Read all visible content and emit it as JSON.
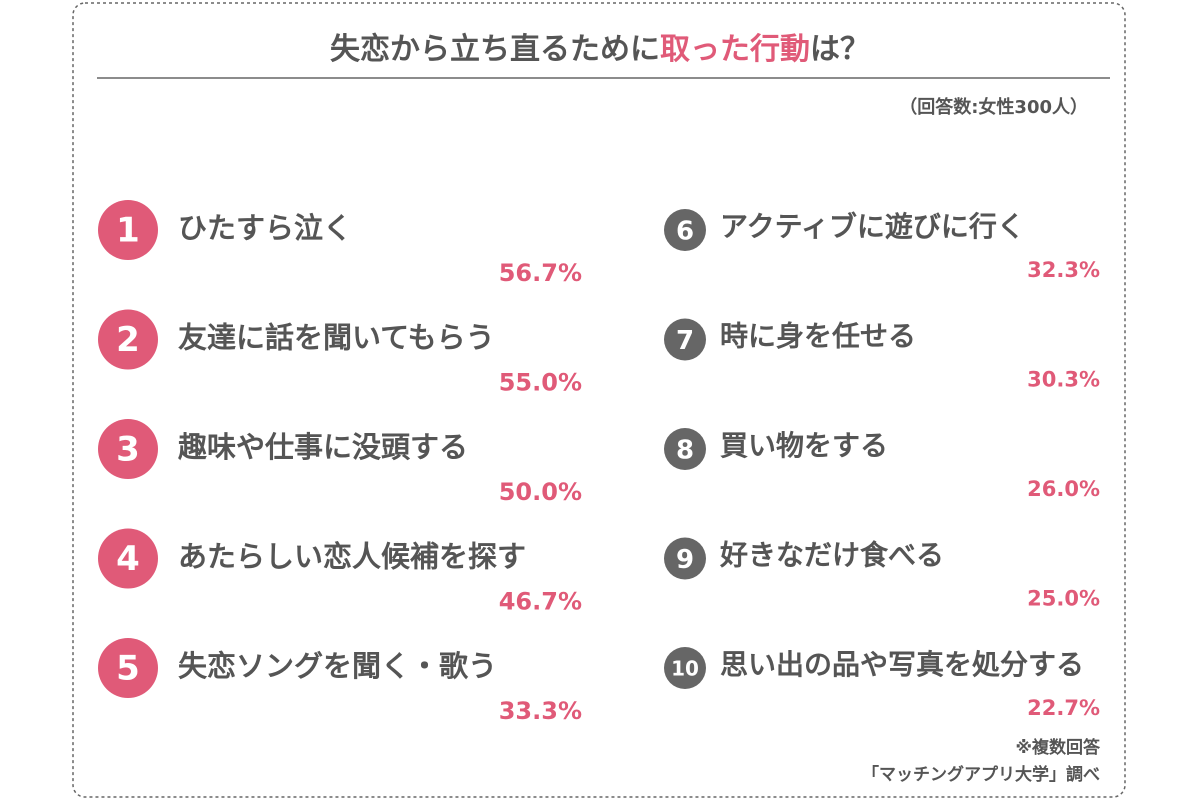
{
  "header": {
    "title": [
      "失恋から立ち直るために",
      "取った行動",
      "は？"
    ],
    "subtitle": "（回答数:女性300人）"
  },
  "items": [
    {
      "rank": "1",
      "label": "ひたすら泣く",
      "percent": "56.7%"
    },
    {
      "rank": "2",
      "label": "友達に話を聞いてもらう",
      "percent": "55.0%"
    },
    {
      "rank": "3",
      "label": "趣味や仕事に没頭する",
      "percent": "50.0%"
    },
    {
      "rank": "4",
      "label": "あたらしい恋人候補を探す",
      "percent": "46.7%"
    },
    {
      "rank": "5",
      "label": "失恋ソングを聞く・歌う",
      "percent": "33.3%"
    },
    {
      "rank": "6",
      "label": "アクティブに遊びに行く",
      "percent": "32.3%"
    },
    {
      "rank": "7",
      "label": "時に身を任せる",
      "percent": "30.3%"
    },
    {
      "rank": "8",
      "label": "買い物をする",
      "percent": "26.0%"
    },
    {
      "rank": "9",
      "label": "好きなだけ食べる",
      "percent": "25.0%"
    },
    {
      "rank": "10",
      "label": "思い出の品や写真を処分する",
      "percent": "22.7%"
    }
  ],
  "footer": {
    "note": "※複数回答",
    "source": "「マッチングアプリ大学」調べ"
  }
}
